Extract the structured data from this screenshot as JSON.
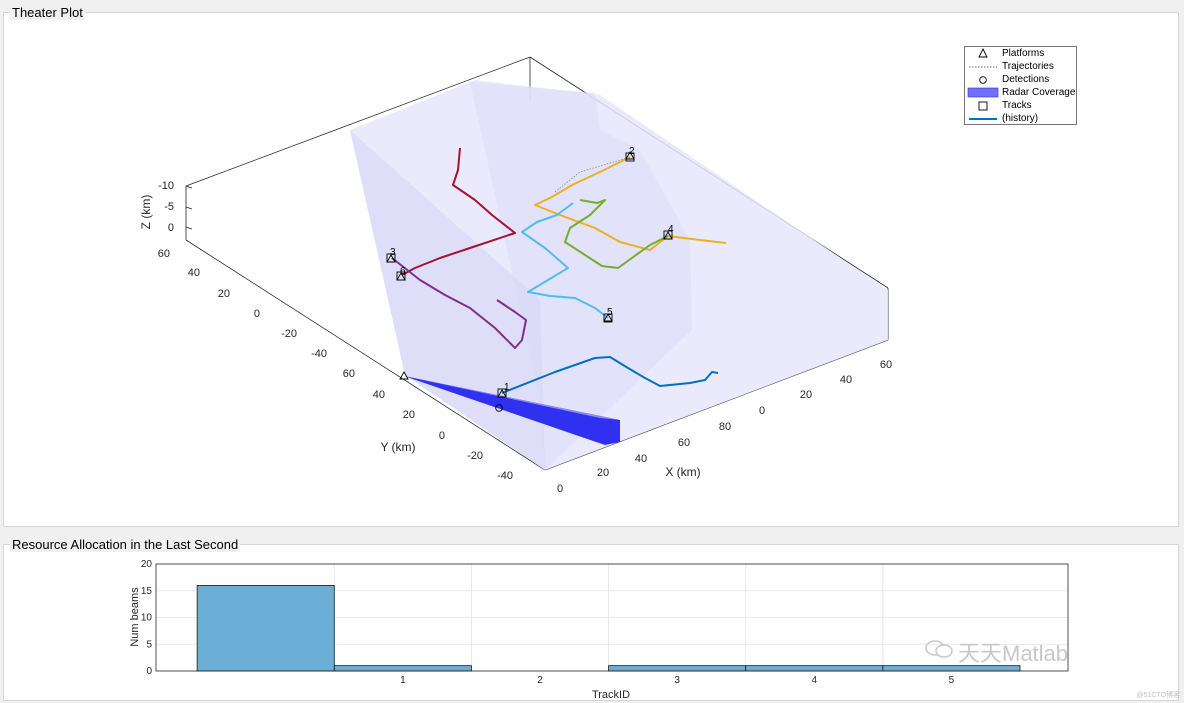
{
  "panels": {
    "theater_title": "Theater Plot",
    "resource_title": "Resource Allocation in the Last Second"
  },
  "colors": {
    "track1": "#0072bd",
    "track2": "#edb120",
    "track3": "#a2142f",
    "track4": "#77ac30",
    "track5": "#4dbeee",
    "track6": "#7e2f8e",
    "coverage": "#6d6dff",
    "beam": "#2424f5",
    "bar": "#6baed6"
  },
  "chart_data": [
    {
      "type": "line",
      "title": "",
      "xlabel": "X (km)",
      "ylabel": "Y (km)",
      "zlabel": "Z (km)",
      "x_ticks": [
        "0",
        "20",
        "40",
        "60",
        "80"
      ],
      "y_ticks_front": [
        "60",
        "40",
        "20",
        "0",
        "-20",
        "-40"
      ],
      "y_ticks_back": [
        "60",
        "40",
        "20",
        "0",
        "-20",
        "-40"
      ],
      "x_ticks_right": [
        "60",
        "40",
        "20",
        "0"
      ],
      "z_ticks": [
        "-10",
        "-5",
        "0"
      ],
      "legend": {
        "placement": "top-right",
        "entries": [
          "Platforms",
          "Trajectories",
          "Detections",
          "Radar Coverage",
          "Tracks",
          "(history)"
        ]
      },
      "track_labels": [
        "1",
        "2",
        "3",
        "4",
        "5",
        "6"
      ]
    },
    {
      "type": "bar",
      "title": "",
      "xlabel": "TrackID",
      "ylabel": "Num beams",
      "categories": [
        "",
        "1",
        "2",
        "3",
        "4",
        "5"
      ],
      "values": [
        16,
        1,
        0,
        1,
        1,
        1
      ],
      "ylim": [
        0,
        20
      ],
      "y_ticks": [
        "0",
        "5",
        "10",
        "15",
        "20"
      ],
      "x_ticks": [
        "1",
        "2",
        "3",
        "4",
        "5"
      ],
      "grid": true
    }
  ],
  "watermark": "天天Matlab",
  "credit": "@51CTO博客"
}
